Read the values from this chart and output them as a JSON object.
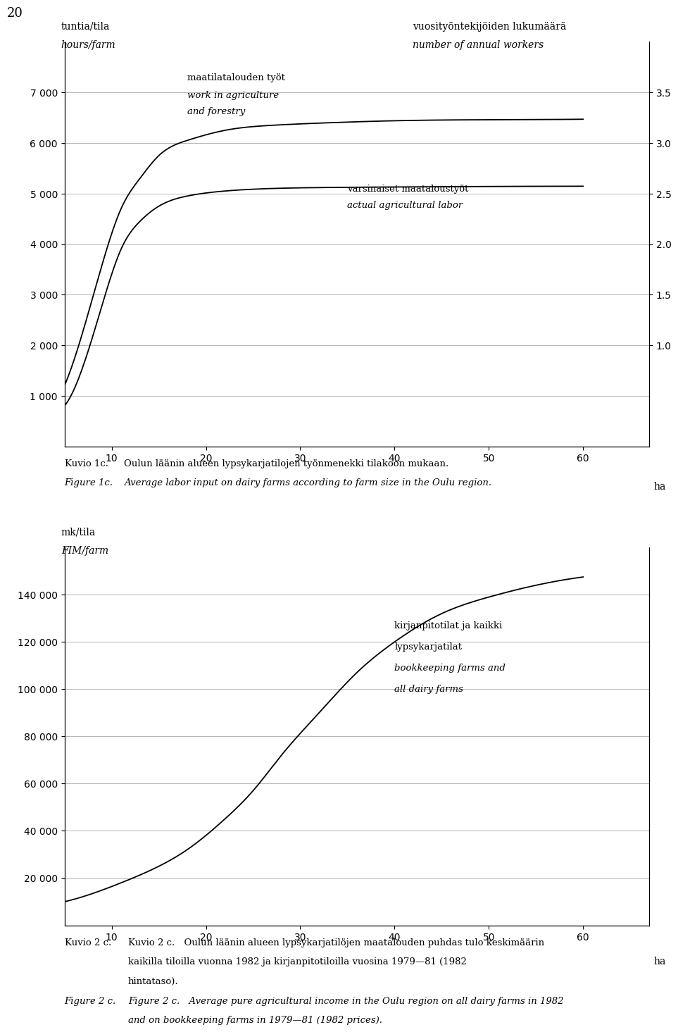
{
  "page_number": "20",
  "chart1": {
    "ylabel_left_line1": "tuntia/tila",
    "ylabel_left_line2": "hours/farm",
    "ylabel_right_line1": "vuosityöntekijöiden lukumäärä",
    "ylabel_right_line2": "number of annual workers",
    "xlim": [
      5,
      67
    ],
    "ylim_left": [
      0,
      8000
    ],
    "ylim_right": [
      0,
      4.0
    ],
    "xticks": [
      10,
      20,
      30,
      40,
      50,
      60
    ],
    "xlabel": "ha",
    "yticks_left": [
      1000,
      2000,
      3000,
      4000,
      5000,
      6000,
      7000
    ],
    "yticks_right": [
      1.0,
      1.5,
      2.0,
      2.5,
      3.0,
      3.5
    ],
    "curve1_x": [
      5,
      7,
      9,
      11,
      13,
      15,
      18,
      22,
      27,
      33,
      40,
      50,
      60
    ],
    "curve1_y": [
      1200,
      2300,
      3600,
      4700,
      5300,
      5750,
      6050,
      6250,
      6350,
      6400,
      6440,
      6460,
      6470
    ],
    "curve2_x": [
      5,
      7,
      9,
      11,
      13,
      15,
      18,
      22,
      27,
      33,
      40,
      50,
      60
    ],
    "curve2_y": [
      800,
      1600,
      2800,
      3900,
      4450,
      4750,
      4950,
      5050,
      5100,
      5120,
      5130,
      5140,
      5145
    ],
    "label1_text1": "maatilatalouden työt",
    "label1_text2": "work in agriculture",
    "label1_text3": "and forestry",
    "label2_text1": "varsinaiset maataloustyöt",
    "label2_text2": "actual agricultural labor",
    "caption_fi": "Kuvio 1c. Oulun läänin alueen lypsykarjatilojen työnmenekki tilakoon mukaan.",
    "caption_en": "Figure 1c. Average labor input on dairy farms according to farm size in the Oulu region."
  },
  "chart2": {
    "ylabel_left_line1": "mk/tila",
    "ylabel_left_line2": "FIM/farm",
    "xlim": [
      5,
      67
    ],
    "ylim_left": [
      0,
      160000
    ],
    "xticks": [
      10,
      20,
      30,
      40,
      50,
      60
    ],
    "xlabel": "ha",
    "yticks_left": [
      20000,
      40000,
      60000,
      80000,
      100000,
      120000,
      140000
    ],
    "curve1_x": [
      5,
      8,
      11,
      15,
      18,
      22,
      25,
      28,
      32,
      36,
      40,
      45,
      50,
      55,
      60
    ],
    "curve1_y": [
      10000,
      13500,
      18000,
      25000,
      32000,
      45000,
      57000,
      72000,
      90000,
      107000,
      120000,
      132000,
      139000,
      144000,
      147500
    ],
    "label1_text1": "kirjanpitotilat ja kaikki",
    "label1_text2": "lypsykarjatilat",
    "label1_text3": "bookkeeping farms and",
    "label1_text4": "all dairy farms",
    "caption_fi_1": "Kuvio 2 c. Oulun läänin alueen lypsykarjatilöjen maatalouden puhdas tulo keskimäärin",
    "caption_fi_2": "kaikilla tiloilla vuonna 1982 ja kirjanpitotiloilla vuosina 1979—81 (1982",
    "caption_fi_3": "hintataso).",
    "caption_en_1": "Figure 2 c. Average pure agricultural income in the Oulu region on all dairy farms in 1982",
    "caption_en_2": "and on bookkeeping farms in 1979—81 (1982 prices)."
  },
  "background_color": "#ffffff",
  "line_color": "#000000",
  "font_color": "#000000"
}
